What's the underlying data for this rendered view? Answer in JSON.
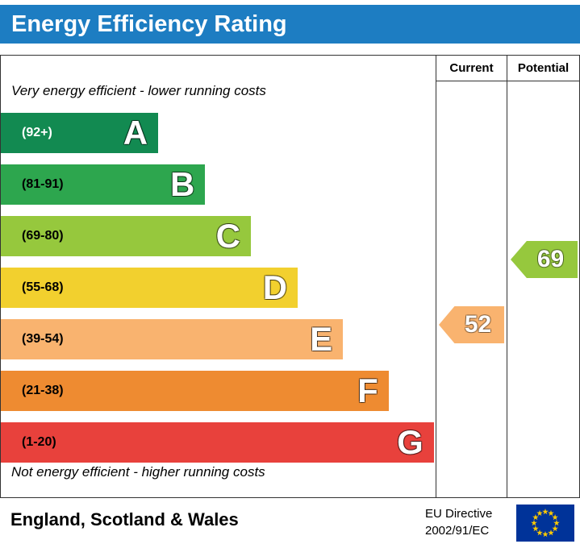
{
  "title_bar": {
    "title": "Energy Efficiency Rating"
  },
  "table_header": {
    "current": "Current",
    "potential": "Potential"
  },
  "captions": {
    "top": "Very energy efficient - lower running costs",
    "bottom": "Not energy efficient - higher running costs"
  },
  "bands": [
    {
      "letter": "A",
      "range": "(92+)",
      "color": "#128a51",
      "width_pct": 36.2,
      "range_color": "#ffffff"
    },
    {
      "letter": "B",
      "range": "(81-91)",
      "color": "#2da64e",
      "width_pct": 47.0,
      "range_color": "#000000"
    },
    {
      "letter": "C",
      "range": "(69-80)",
      "color": "#96c83d",
      "width_pct": 57.5,
      "range_color": "#000000"
    },
    {
      "letter": "D",
      "range": "(55-68)",
      "color": "#f2d02e",
      "width_pct": 68.3,
      "range_color": "#000000"
    },
    {
      "letter": "E",
      "range": "(39-54)",
      "color": "#f9b36f",
      "width_pct": 78.7,
      "range_color": "#000000"
    },
    {
      "letter": "F",
      "range": "(21-38)",
      "color": "#ee8b31",
      "width_pct": 89.2,
      "range_color": "#000000"
    },
    {
      "letter": "G",
      "range": "(1-20)",
      "color": "#e8413c",
      "width_pct": 99.6,
      "range_color": "#000000"
    }
  ],
  "ratings": {
    "current": {
      "value": "52",
      "band": "E",
      "color": "#f9b36f"
    },
    "potential": {
      "value": "69",
      "band": "C",
      "color": "#96c83d"
    }
  },
  "footer": {
    "region": "England, Scotland & Wales",
    "directive_line1": "EU Directive",
    "directive_line2": "2002/91/EC"
  },
  "colors": {
    "title_bar_blue": "#1d7dc2",
    "border": "#333333",
    "eu_flag_blue": "#003399",
    "eu_star_yellow": "#ffcc00"
  },
  "chart_data": {
    "type": "bar",
    "title": "Energy Efficiency Rating",
    "categories": [
      "A",
      "B",
      "C",
      "D",
      "E",
      "F",
      "G"
    ],
    "band_ranges": [
      "92+",
      "81-91",
      "69-80",
      "55-68",
      "39-54",
      "21-38",
      "1-20"
    ],
    "band_colors": [
      "#128a51",
      "#2da64e",
      "#96c83d",
      "#f2d02e",
      "#f9b36f",
      "#ee8b31",
      "#e8413c"
    ],
    "bar_length_pct": [
      36.2,
      47.0,
      57.5,
      68.3,
      78.7,
      89.2,
      99.6
    ],
    "current_rating": 52,
    "current_band": "E",
    "potential_rating": 69,
    "potential_band": "C",
    "scale_note": "A (92+) best, G (1-20) worst; full scale 1-100",
    "legend_position": "columns right: Current / Potential"
  }
}
